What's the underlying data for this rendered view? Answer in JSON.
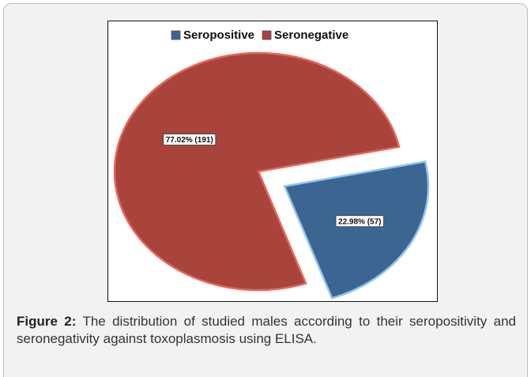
{
  "chart_data": {
    "type": "pie",
    "categories": [
      "Seropositive",
      "Seronegative"
    ],
    "values": [
      22.98,
      77.02
    ],
    "value_labels": [
      "22.98% (57)",
      "77.02% (191)"
    ],
    "colors": [
      "#3d6591",
      "#a8443b"
    ],
    "legend": "top"
  },
  "caption": {
    "label": "Figure 2:",
    "text": "The distribution of studied males according to their seropositivity and seronegativity against toxoplasmosis using ELISA."
  }
}
